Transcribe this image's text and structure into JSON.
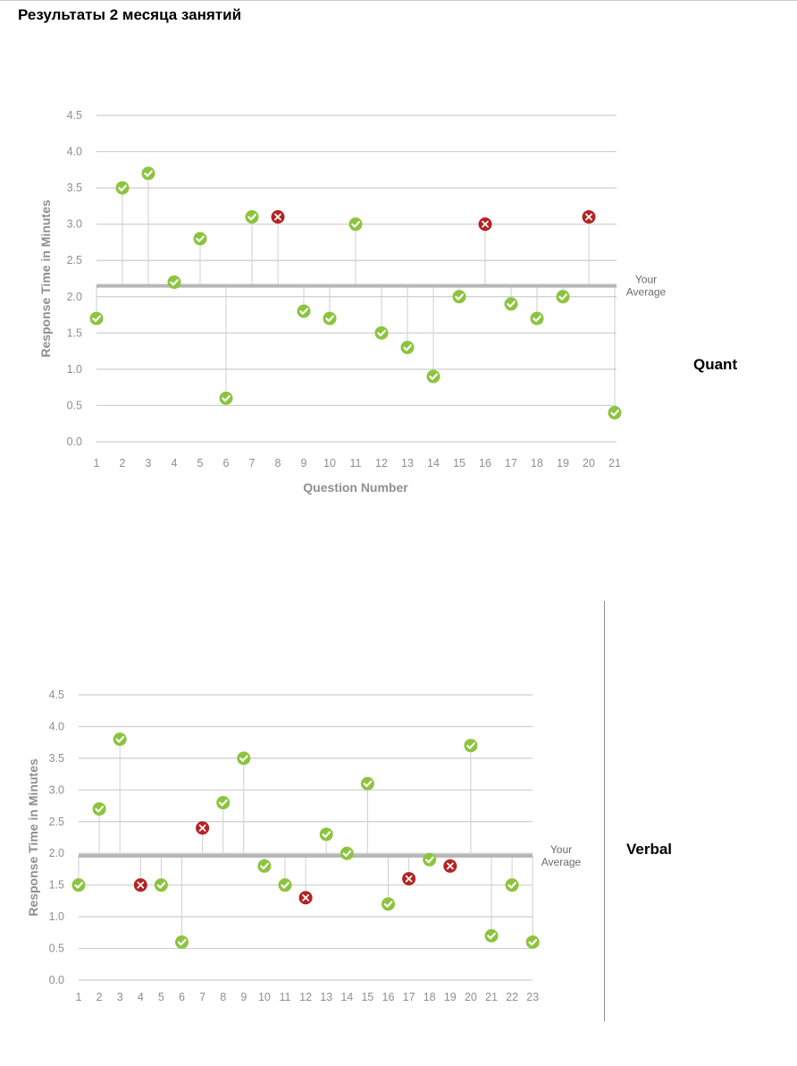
{
  "page_title": "Результаты 2 месяца занятий",
  "colors": {
    "correct": "#8cc43f",
    "incorrect": "#b52222",
    "grid": "#cdcdcd",
    "average_line": "#b7b7b7",
    "tick_text": "#8f8f8f"
  },
  "chart_data": [
    {
      "type": "scatter",
      "side_label": "Quant",
      "ylabel": "Response Time in Minutes",
      "xlabel": "Question Number",
      "ylim": [
        0,
        4.5
      ],
      "y_ticks": [
        "0.0",
        "0.5",
        "1.0",
        "1.5",
        "2.0",
        "2.5",
        "3.0",
        "3.5",
        "4.0",
        "4.5"
      ],
      "x_ticks": [
        "1",
        "2",
        "3",
        "4",
        "5",
        "6",
        "7",
        "8",
        "9",
        "10",
        "11",
        "12",
        "13",
        "14",
        "15",
        "16",
        "17",
        "18",
        "19",
        "20",
        "21"
      ],
      "average": 2.15,
      "average_label": [
        "Your",
        "Average"
      ],
      "grid": true,
      "points": [
        {
          "x": 1,
          "y": 1.7,
          "correct": true
        },
        {
          "x": 2,
          "y": 3.5,
          "correct": true
        },
        {
          "x": 3,
          "y": 3.7,
          "correct": true
        },
        {
          "x": 4,
          "y": 2.2,
          "correct": true
        },
        {
          "x": 5,
          "y": 2.8,
          "correct": true
        },
        {
          "x": 6,
          "y": 0.6,
          "correct": true
        },
        {
          "x": 7,
          "y": 3.1,
          "correct": true
        },
        {
          "x": 8,
          "y": 3.1,
          "correct": false
        },
        {
          "x": 9,
          "y": 1.8,
          "correct": true
        },
        {
          "x": 10,
          "y": 1.7,
          "correct": true
        },
        {
          "x": 11,
          "y": 3.0,
          "correct": true
        },
        {
          "x": 12,
          "y": 1.5,
          "correct": true
        },
        {
          "x": 13,
          "y": 1.3,
          "correct": true
        },
        {
          "x": 14,
          "y": 0.9,
          "correct": true
        },
        {
          "x": 15,
          "y": 2.0,
          "correct": true
        },
        {
          "x": 16,
          "y": 3.0,
          "correct": false
        },
        {
          "x": 17,
          "y": 1.9,
          "correct": true
        },
        {
          "x": 18,
          "y": 1.7,
          "correct": true
        },
        {
          "x": 19,
          "y": 2.0,
          "correct": true
        },
        {
          "x": 20,
          "y": 3.1,
          "correct": false
        },
        {
          "x": 21,
          "y": 0.4,
          "correct": true
        }
      ]
    },
    {
      "type": "scatter",
      "side_label": "Verbal",
      "ylabel": "Response Time in Minutes",
      "xlabel": "",
      "ylim": [
        0,
        4.5
      ],
      "y_ticks": [
        "0.0",
        "0.5",
        "1.0",
        "1.5",
        "2.0",
        "2.5",
        "3.0",
        "3.5",
        "4.0",
        "4.5"
      ],
      "x_ticks": [
        "1",
        "2",
        "3",
        "4",
        "5",
        "6",
        "7",
        "8",
        "9",
        "10",
        "11",
        "12",
        "13",
        "14",
        "15",
        "16",
        "17",
        "18",
        "19",
        "20",
        "21",
        "22",
        "23"
      ],
      "average": 1.96,
      "average_label": [
        "Your",
        "Average"
      ],
      "grid": true,
      "points": [
        {
          "x": 1,
          "y": 1.5,
          "correct": true
        },
        {
          "x": 2,
          "y": 2.7,
          "correct": true
        },
        {
          "x": 3,
          "y": 3.8,
          "correct": true
        },
        {
          "x": 4,
          "y": 1.5,
          "correct": false
        },
        {
          "x": 5,
          "y": 1.5,
          "correct": true
        },
        {
          "x": 6,
          "y": 0.6,
          "correct": true
        },
        {
          "x": 7,
          "y": 2.4,
          "correct": false
        },
        {
          "x": 8,
          "y": 2.8,
          "correct": true
        },
        {
          "x": 9,
          "y": 3.5,
          "correct": true
        },
        {
          "x": 10,
          "y": 1.8,
          "correct": true
        },
        {
          "x": 11,
          "y": 1.5,
          "correct": true
        },
        {
          "x": 12,
          "y": 1.3,
          "correct": false
        },
        {
          "x": 13,
          "y": 2.3,
          "correct": true
        },
        {
          "x": 14,
          "y": 2.0,
          "correct": true
        },
        {
          "x": 15,
          "y": 3.1,
          "correct": true
        },
        {
          "x": 16,
          "y": 1.2,
          "correct": true
        },
        {
          "x": 17,
          "y": 1.6,
          "correct": false
        },
        {
          "x": 18,
          "y": 1.9,
          "correct": true
        },
        {
          "x": 19,
          "y": 1.8,
          "correct": false
        },
        {
          "x": 20,
          "y": 3.7,
          "correct": true
        },
        {
          "x": 21,
          "y": 0.7,
          "correct": true
        },
        {
          "x": 22,
          "y": 1.5,
          "correct": true
        },
        {
          "x": 23,
          "y": 0.6,
          "correct": true
        }
      ]
    }
  ]
}
